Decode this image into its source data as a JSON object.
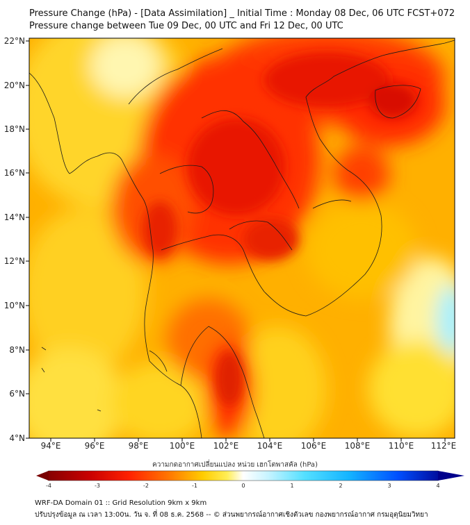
{
  "title": "Pressure Change (hPa) - [Data Assimilation] _ Initial Time : Monday 08 Dec, 06 UTC FCST+072",
  "subtitle": "Pressure change between Tue 09 Dec, 00 UTC and Fri 12 Dec, 00 UTC",
  "lon_labels": [
    "94°E",
    "96°E",
    "98°E",
    "100°E",
    "102°E",
    "104°E",
    "106°E",
    "108°E",
    "110°E",
    "112°E"
  ],
  "lat_labels": [
    "22°N",
    "20°N",
    "18°N",
    "16°N",
    "14°N",
    "12°N",
    "10°N",
    "8°N",
    "6°N",
    "4°N"
  ],
  "colorbar": {
    "title": "ความกดอากาศเปลี่ยนแปลง หน่วย เฮกโตพาสคัล (hPa)",
    "ticks": [
      "-4",
      "-3",
      "-2",
      "-1",
      "0",
      "1",
      "2",
      "3",
      "4"
    ],
    "colors": [
      "#7a0000",
      "#b00000",
      "#e60000",
      "#ff3300",
      "#ff6a00",
      "#ffa500",
      "#ffcc00",
      "#ffe933",
      "#fff59a",
      "#ffffff",
      "#d6f7ff",
      "#7fe8ff",
      "#1ec8ff",
      "#0a8cff",
      "#0040ff",
      "#0000b0"
    ]
  },
  "footer_line1": "WRF-DA Domain 01 :: Grid Resolution 9km x 9km",
  "footer_line2": "ปรับปรุงข้อมูล ณ เวลา 13:00น. วัน จ. ที่ 08 ธ.ค. 2568 -- © ส่วนพยากรณ์อากาศเชิงตัวเลข กองพยากรณ์อากาศ กรมอุตุนิยมวิทยา"
}
